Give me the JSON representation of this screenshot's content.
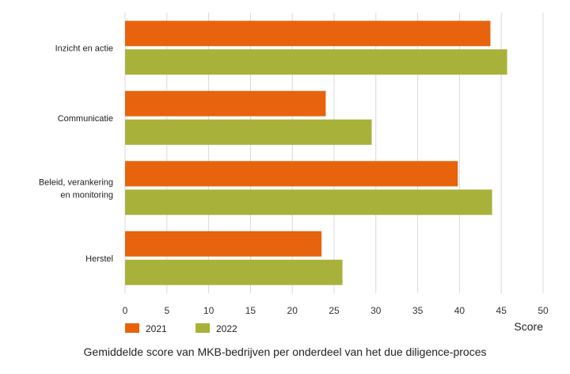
{
  "chart_data": {
    "type": "bar",
    "orientation": "horizontal",
    "categories": [
      "Inzicht en actie",
      "Communicatie",
      "Beleid, verankering\nen monitoring",
      "Herstel"
    ],
    "series": [
      {
        "name": "2021",
        "color": "#E8630E",
        "values": [
          43.7,
          24.0,
          39.8,
          23.5
        ]
      },
      {
        "name": "2022",
        "color": "#A8B23A",
        "values": [
          45.7,
          29.5,
          43.9,
          26.0
        ]
      }
    ],
    "xlabel": "Score",
    "xlim": [
      0,
      50
    ],
    "xticks": [
      0,
      5,
      10,
      15,
      20,
      25,
      30,
      35,
      40,
      45,
      50
    ],
    "grid": "vertical",
    "legend_position": "bottom-left",
    "caption": "Gemiddelde score van MKB-bedrijven per onderdeel van het due diligence-proces"
  }
}
